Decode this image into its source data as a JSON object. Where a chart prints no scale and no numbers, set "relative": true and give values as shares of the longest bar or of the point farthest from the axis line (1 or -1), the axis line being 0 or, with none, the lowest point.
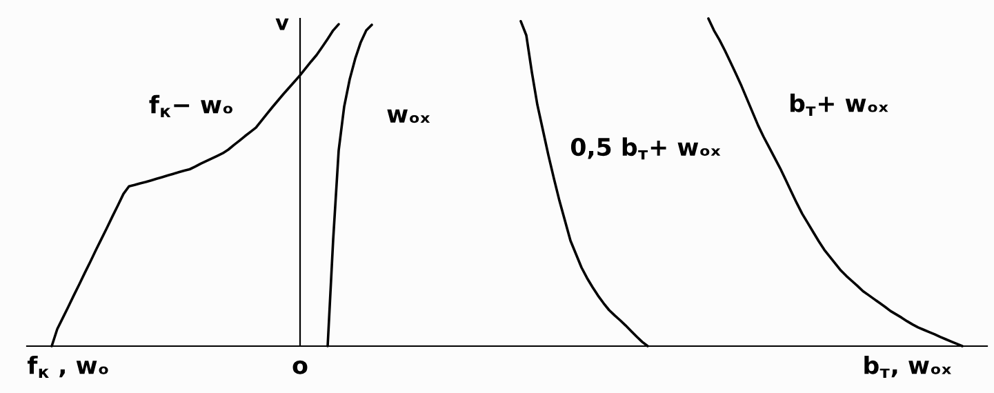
{
  "chart_data": {
    "type": "line",
    "relative": true,
    "ylabel": "v",
    "categories": [
      null,
      null,
      null,
      null,
      null,
      null,
      null,
      "f$_{к}$ , wₒ",
      null,
      null,
      null,
      null,
      null,
      null,
      null,
      null,
      null,
      null,
      null,
      null,
      null,
      null,
      null,
      null,
      null,
      null,
      null,
      null,
      null,
      null,
      null,
      null,
      null,
      null,
      null,
      null,
      null,
      null,
      null,
      null,
      null,
      null,
      null,
      null,
      null,
      null,
      null,
      null,
      null,
      "o",
      null,
      null,
      null,
      null,
      null,
      null,
      null,
      null,
      null,
      null,
      null,
      null,
      null,
      null,
      null,
      null,
      null,
      null,
      null,
      null,
      null,
      null,
      null,
      null,
      null,
      null,
      null,
      null,
      null,
      null,
      null,
      null,
      null,
      null,
      null,
      null,
      null,
      null,
      null,
      null,
      null,
      null,
      null,
      null,
      null,
      null,
      null,
      null,
      null,
      null,
      null,
      null,
      null,
      null,
      null,
      null,
      null,
      null,
      null,
      null,
      null,
      null,
      null,
      null,
      null,
      null,
      null,
      null,
      null,
      null,
      null,
      null,
      null,
      null,
      null,
      null,
      null,
      null,
      null,
      null,
      null,
      null,
      null,
      null,
      null,
      null,
      null,
      null,
      null,
      null,
      null,
      null,
      null,
      null,
      null,
      null,
      null,
      null,
      null,
      null,
      null,
      null,
      null,
      null,
      null,
      null,
      null,
      null,
      null,
      "b$_{т}$, wₒₓ",
      null,
      null,
      null,
      null,
      null,
      null,
      null,
      null,
      null,
      null,
      null,
      null,
      null,
      null
    ],
    "series": [
      {
        "name": "f$_{к}$− wₒ",
        "color": "#000000",
        "values": [
          null,
          null,
          null,
          null,
          0.0,
          0.052,
          0.086,
          0.12,
          0.155,
          0.189,
          0.224,
          0.258,
          0.293,
          0.327,
          0.361,
          0.396,
          0.43,
          0.465,
          0.488,
          0.492,
          0.497,
          0.501,
          0.506,
          0.511,
          0.516,
          0.521,
          0.526,
          0.531,
          0.536,
          0.54,
          0.548,
          0.557,
          0.565,
          0.573,
          0.581,
          0.589,
          0.6,
          0.614,
          0.627,
          0.641,
          0.654,
          0.667,
          0.688,
          0.709,
          0.73,
          0.75,
          0.77,
          0.789,
          0.808,
          0.827,
          0.848,
          0.869,
          0.889,
          0.913,
          0.938,
          0.964,
          0.983,
          null,
          null,
          null,
          null,
          null,
          null,
          null,
          null,
          null,
          null,
          null,
          null,
          null,
          null,
          null,
          null,
          null,
          null,
          null,
          null,
          null,
          null,
          null,
          null,
          null,
          null,
          null,
          null,
          null,
          null,
          null,
          null,
          null,
          null,
          null,
          null,
          null,
          null,
          null,
          null,
          null,
          null,
          null,
          null,
          null,
          null,
          null,
          null,
          null,
          null,
          null,
          null,
          null,
          null,
          null,
          null,
          null,
          null,
          null,
          null,
          null,
          null,
          null,
          null,
          null,
          null,
          null,
          null,
          null,
          null,
          null,
          null,
          null,
          null,
          null,
          null,
          null,
          null,
          null,
          null,
          null,
          null,
          null,
          null,
          null,
          null,
          null,
          null,
          null,
          null,
          null,
          null,
          null,
          null,
          null,
          null,
          null,
          null,
          null,
          null,
          null,
          null,
          null,
          null,
          null,
          null,
          null,
          null,
          null,
          null,
          null,
          null,
          null,
          null,
          null,
          null,
          null
        ]
      },
      {
        "name": "wₒₓ",
        "color": "#000000",
        "values": [
          null,
          null,
          null,
          null,
          null,
          null,
          null,
          null,
          null,
          null,
          null,
          null,
          null,
          null,
          null,
          null,
          null,
          null,
          null,
          null,
          null,
          null,
          null,
          null,
          null,
          null,
          null,
          null,
          null,
          null,
          null,
          null,
          null,
          null,
          null,
          null,
          null,
          null,
          null,
          null,
          null,
          null,
          null,
          null,
          null,
          null,
          null,
          null,
          null,
          null,
          null,
          null,
          null,
          null,
          0.0,
          0.325,
          0.598,
          0.732,
          0.815,
          0.878,
          0.928,
          0.964,
          0.981,
          null,
          null,
          null,
          null,
          null,
          null,
          null,
          null,
          null,
          null,
          null,
          null,
          null,
          null,
          null,
          null,
          null,
          null,
          null,
          null,
          null,
          null,
          null,
          null,
          null,
          null,
          null,
          null,
          null,
          null,
          null,
          null,
          null,
          null,
          null,
          null,
          null,
          null,
          null,
          null,
          null,
          null,
          null,
          null,
          null,
          null,
          null,
          null,
          null,
          null,
          null,
          null,
          null,
          null,
          null,
          null,
          null,
          null,
          null,
          null,
          null,
          null,
          null,
          null,
          null,
          null,
          null,
          null,
          null,
          null,
          null,
          null,
          null,
          null,
          null,
          null,
          null,
          null,
          null,
          null,
          null,
          null,
          null,
          null,
          null,
          null,
          null,
          null,
          null,
          null,
          null,
          null,
          null,
          null,
          null,
          null,
          null,
          null,
          null,
          null,
          null,
          null,
          null,
          null,
          null,
          null,
          null,
          null,
          null,
          null,
          null
        ]
      },
      {
        "name": "0,5 b$_{т}$+ wₒₓ",
        "color": "#000000",
        "values": [
          null,
          null,
          null,
          null,
          null,
          null,
          null,
          null,
          null,
          null,
          null,
          null,
          null,
          null,
          null,
          null,
          null,
          null,
          null,
          null,
          null,
          null,
          null,
          null,
          null,
          null,
          null,
          null,
          null,
          null,
          null,
          null,
          null,
          null,
          null,
          null,
          null,
          null,
          null,
          null,
          null,
          null,
          null,
          null,
          null,
          null,
          null,
          null,
          null,
          null,
          null,
          null,
          null,
          null,
          null,
          null,
          null,
          null,
          null,
          null,
          null,
          null,
          null,
          null,
          null,
          null,
          null,
          null,
          null,
          null,
          null,
          null,
          null,
          null,
          null,
          null,
          null,
          null,
          null,
          null,
          null,
          null,
          null,
          null,
          null,
          null,
          null,
          null,
          null,
          0.992,
          0.949,
          0.837,
          0.737,
          0.66,
          0.583,
          0.512,
          0.444,
          0.383,
          0.322,
          0.281,
          0.24,
          0.208,
          0.18,
          0.154,
          0.131,
          0.11,
          0.094,
          0.079,
          0.063,
          0.046,
          0.029,
          0.013,
          0.0,
          null,
          null,
          null,
          null,
          null,
          null,
          null,
          null,
          null,
          null,
          null,
          null,
          null,
          null,
          null,
          null,
          null,
          null,
          null,
          null,
          null,
          null,
          null,
          null,
          null,
          null,
          null,
          null,
          null,
          null,
          null,
          null,
          null,
          null,
          null,
          null,
          null,
          null,
          null,
          null,
          null,
          null,
          null,
          null,
          null,
          null,
          null,
          null,
          null,
          null,
          null,
          null,
          null,
          null,
          null,
          null,
          null,
          null,
          null,
          null,
          null
        ]
      },
      {
        "name": "b$_{т}$+ wₒₓ",
        "color": "#000000",
        "values": [
          null,
          null,
          null,
          null,
          null,
          null,
          null,
          null,
          null,
          null,
          null,
          null,
          null,
          null,
          null,
          null,
          null,
          null,
          null,
          null,
          null,
          null,
          null,
          null,
          null,
          null,
          null,
          null,
          null,
          null,
          null,
          null,
          null,
          null,
          null,
          null,
          null,
          null,
          null,
          null,
          null,
          null,
          null,
          null,
          null,
          null,
          null,
          null,
          null,
          null,
          null,
          null,
          null,
          null,
          null,
          null,
          null,
          null,
          null,
          null,
          null,
          null,
          null,
          null,
          null,
          null,
          null,
          null,
          null,
          null,
          null,
          null,
          null,
          null,
          null,
          null,
          null,
          null,
          null,
          null,
          null,
          null,
          null,
          null,
          null,
          null,
          null,
          null,
          null,
          null,
          null,
          null,
          null,
          null,
          null,
          null,
          null,
          null,
          null,
          null,
          null,
          null,
          null,
          null,
          null,
          null,
          null,
          null,
          null,
          null,
          null,
          null,
          null,
          null,
          null,
          null,
          null,
          null,
          null,
          null,
          null,
          null,
          null,
          1.0,
          0.964,
          0.935,
          0.902,
          0.867,
          0.831,
          0.794,
          0.754,
          0.714,
          0.674,
          0.639,
          0.607,
          0.575,
          0.543,
          0.508,
          0.472,
          0.437,
          0.404,
          0.376,
          0.348,
          0.32,
          0.294,
          0.273,
          0.252,
          0.231,
          0.214,
          0.199,
          0.184,
          0.168,
          0.156,
          0.144,
          0.132,
          0.12,
          0.107,
          0.097,
          0.087,
          0.076,
          0.066,
          0.057,
          0.05,
          0.043,
          0.036,
          0.028,
          0.021,
          0.014,
          0.007,
          0.0,
          null,
          null,
          null,
          null
        ]
      }
    ]
  }
}
